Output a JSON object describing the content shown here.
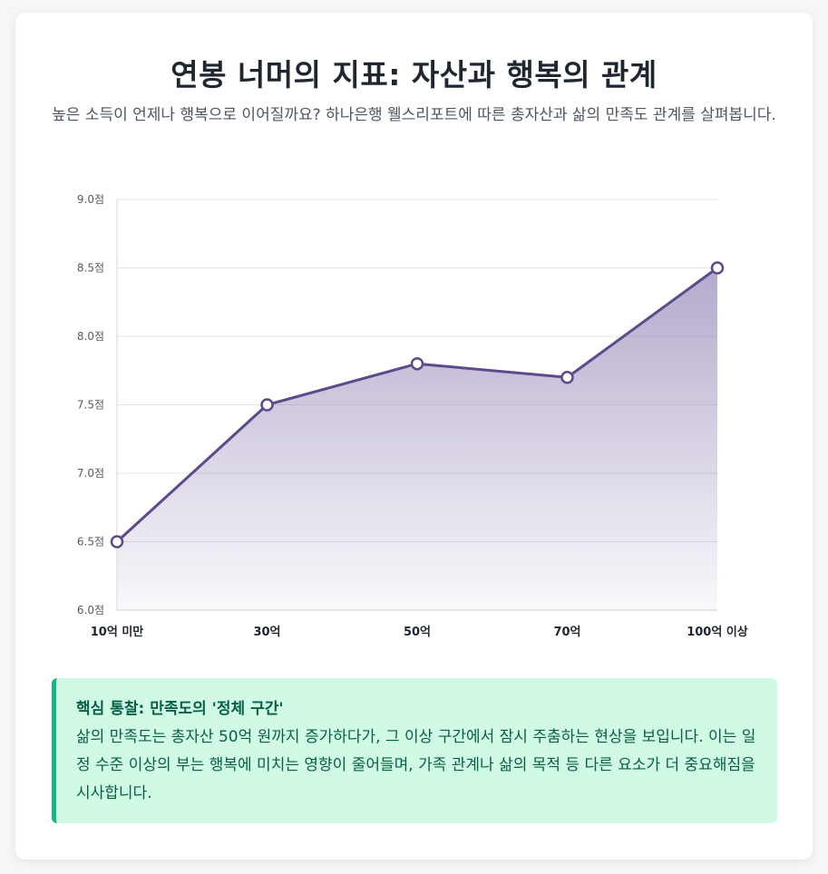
{
  "header": {
    "title": "연봉 너머의 지표: 자산과 행복의 관계",
    "subtitle": "높은 소득이 언제나 행복으로 이어질까요? 하나은행 웰스리포트에 따른 총자산과 삶의 만족도 관계를 살펴봅니다."
  },
  "chart_data": {
    "type": "area",
    "categories": [
      "10억 미만",
      "30억",
      "50억",
      "70억",
      "100억 이상"
    ],
    "values": [
      6.5,
      7.5,
      7.8,
      7.7,
      8.5
    ],
    "ylim": [
      6.0,
      9.0
    ],
    "yticks": [
      6.0,
      6.5,
      7.0,
      7.5,
      8.0,
      8.5,
      9.0
    ],
    "ytick_labels": [
      "6.0점",
      "6.5점",
      "7.0점",
      "7.5점",
      "8.0점",
      "8.5점",
      "9.0점"
    ],
    "grid": true,
    "line_color": "#5c4a8c",
    "fill_color": "#8c7bb0"
  },
  "insight": {
    "title": "핵심 통찰: 만족도의 '정체 구간'",
    "body": "삶의 만족도는 총자산 50억 원까지 증가하다가, 그 이상 구간에서 잠시 주춤하는 현상을 보입니다. 이는 일정 수준 이상의 부는 행복에 미치는 영향이 줄어들며, 가족 관계나 삶의 목적 등 다른 요소가 더 중요해짐을 시사합니다.",
    "accent_color": "#10b981",
    "background_color": "#d1fae5"
  }
}
